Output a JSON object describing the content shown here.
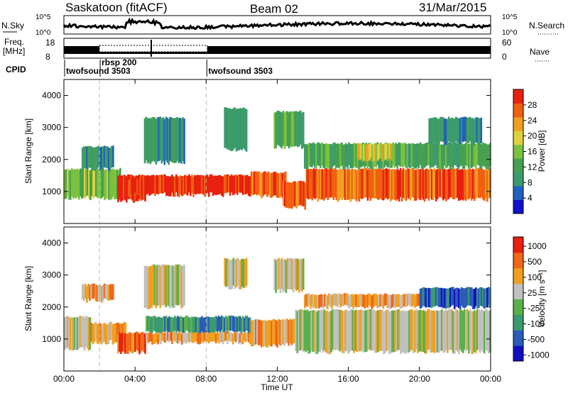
{
  "header": {
    "site": "Saskatoon (fitACF)",
    "beam": "Beam 02",
    "date": "31/Mar/2015"
  },
  "noise_panel": {
    "left_label": "N.Sky",
    "right_label": "N.Search",
    "left_ticks": [
      "10^5",
      "10^0"
    ],
    "right_ticks": [
      "10^5",
      "10^0"
    ]
  },
  "freq_panel": {
    "left_label_1": "Freq.",
    "left_label_2": "[MHz]",
    "right_label": "Nave",
    "left_ticks": [
      "18",
      "8"
    ],
    "right_ticks": [
      "60",
      "0"
    ]
  },
  "cpid": {
    "label": "CPID",
    "programs": [
      {
        "name": "twofsound 3503",
        "start_hour": 0
      },
      {
        "name": "rbsp 200",
        "start_hour": 2.0
      },
      {
        "name": "twofsound 3503",
        "start_hour": 8.0
      }
    ]
  },
  "colors": {
    "power": [
      "#1010d0",
      "#2060c0",
      "#3a9a70",
      "#46a050",
      "#7cc040",
      "#e0d040",
      "#f0a020",
      "#f06010",
      "#e82010"
    ],
    "velocity": [
      "#1010c0",
      "#2a5cb8",
      "#3a9a70",
      "#5ab04a",
      "#c0c0c0",
      "#f0a020",
      "#f06818",
      "#e82010"
    ]
  },
  "chart_data": [
    {
      "type": "heatmap",
      "title": "Power",
      "ylabel": "Slant Range [km]",
      "xlabel": "Time UT",
      "x_range": [
        "00:00",
        "24:00"
      ],
      "ylim": [
        0,
        4500
      ],
      "y_ticks": [
        "1000",
        "2000",
        "3000",
        "4000"
      ],
      "colorbar_label": "Power [dB]",
      "colorbar_ticks": [
        "4",
        "8",
        "12",
        "16",
        "20",
        "24",
        "28"
      ],
      "regions": [
        {
          "t0": 0.0,
          "t1": 3.2,
          "r0": 800,
          "r1": 1700,
          "level": 4
        },
        {
          "t0": 3.0,
          "t1": 4.6,
          "r0": 700,
          "r1": 1500,
          "level": 8
        },
        {
          "t0": 3.6,
          "t1": 4.4,
          "r0": 900,
          "r1": 1400,
          "level": 8
        },
        {
          "t0": 4.6,
          "t1": 10.5,
          "r0": 900,
          "r1": 1500,
          "level": 8
        },
        {
          "t0": 10.5,
          "t1": 12.5,
          "r0": 850,
          "r1": 1600,
          "level": 7
        },
        {
          "t0": 12.3,
          "t1": 13.6,
          "r0": 500,
          "r1": 1300,
          "level": 7
        },
        {
          "t0": 13.6,
          "t1": 24.0,
          "r0": 750,
          "r1": 1700,
          "level": 7
        },
        {
          "t0": 1.0,
          "t1": 2.8,
          "r0": 1700,
          "r1": 2400,
          "level": 2
        },
        {
          "t0": 4.5,
          "t1": 6.8,
          "r0": 1900,
          "r1": 3300,
          "level": 2
        },
        {
          "t0": 9.0,
          "t1": 10.3,
          "r0": 2300,
          "r1": 3600,
          "level": 2
        },
        {
          "t0": 11.8,
          "t1": 13.5,
          "r0": 2400,
          "r1": 3500,
          "level": 3
        },
        {
          "t0": 13.5,
          "t1": 24.0,
          "r0": 1750,
          "r1": 2500,
          "level": 3
        },
        {
          "t0": 16.5,
          "t1": 18.5,
          "r0": 2000,
          "r1": 2500,
          "level": 5
        },
        {
          "t0": 20.5,
          "t1": 23.5,
          "r0": 2500,
          "r1": 3300,
          "level": 2
        }
      ]
    },
    {
      "type": "heatmap",
      "title": "Velocity",
      "ylabel": "Slant Range [km]",
      "xlabel": "Time UT",
      "x_range": [
        "00:00",
        "24:00"
      ],
      "ylim": [
        0,
        4500
      ],
      "y_ticks": [
        "1000",
        "2000",
        "3000",
        "4000"
      ],
      "colorbar_label": "Velocity [m s⁻¹]",
      "colorbar_ticks": [
        "1000",
        "500",
        "100",
        "25",
        "-25",
        "-100",
        "-500",
        "-1000"
      ],
      "regions": [
        {
          "t0": 0.0,
          "t1": 1.5,
          "r0": 700,
          "r1": 1700,
          "level": 4
        },
        {
          "t0": 1.5,
          "t1": 3.5,
          "r0": 900,
          "r1": 1500,
          "level": 5
        },
        {
          "t0": 3.0,
          "t1": 4.6,
          "r0": 600,
          "r1": 1200,
          "level": 6
        },
        {
          "t0": 4.6,
          "t1": 10.5,
          "r0": 1200,
          "r1": 1700,
          "level": 2
        },
        {
          "t0": 4.6,
          "t1": 10.5,
          "r0": 900,
          "r1": 1200,
          "level": 5
        },
        {
          "t0": 10.5,
          "t1": 13.0,
          "r0": 800,
          "r1": 1600,
          "level": 5
        },
        {
          "t0": 13.0,
          "t1": 24.0,
          "r0": 600,
          "r1": 1900,
          "level": 4
        },
        {
          "t0": 1.0,
          "t1": 2.8,
          "r0": 2200,
          "r1": 2700,
          "level": 5
        },
        {
          "t0": 4.5,
          "t1": 6.8,
          "r0": 2000,
          "r1": 3300,
          "level": 4
        },
        {
          "t0": 9.0,
          "t1": 10.3,
          "r0": 2600,
          "r1": 3500,
          "level": 4
        },
        {
          "t0": 11.8,
          "t1": 13.5,
          "r0": 2500,
          "r1": 3500,
          "level": 4
        },
        {
          "t0": 13.5,
          "t1": 20.0,
          "r0": 2000,
          "r1": 2400,
          "level": 5
        },
        {
          "t0": 20.0,
          "t1": 24.0,
          "r0": 2000,
          "r1": 2600,
          "level": 1
        }
      ]
    }
  ],
  "time_axis": {
    "label": "Time UT",
    "ticks": [
      {
        "hour": 0,
        "label": "00:00"
      },
      {
        "hour": 4,
        "label": "04:00"
      },
      {
        "hour": 8,
        "label": "08:00"
      },
      {
        "hour": 12,
        "label": "12:00"
      },
      {
        "hour": 16,
        "label": "16:00"
      },
      {
        "hour": 20,
        "label": "20:00"
      },
      {
        "hour": 24,
        "label": "00:00"
      }
    ]
  }
}
